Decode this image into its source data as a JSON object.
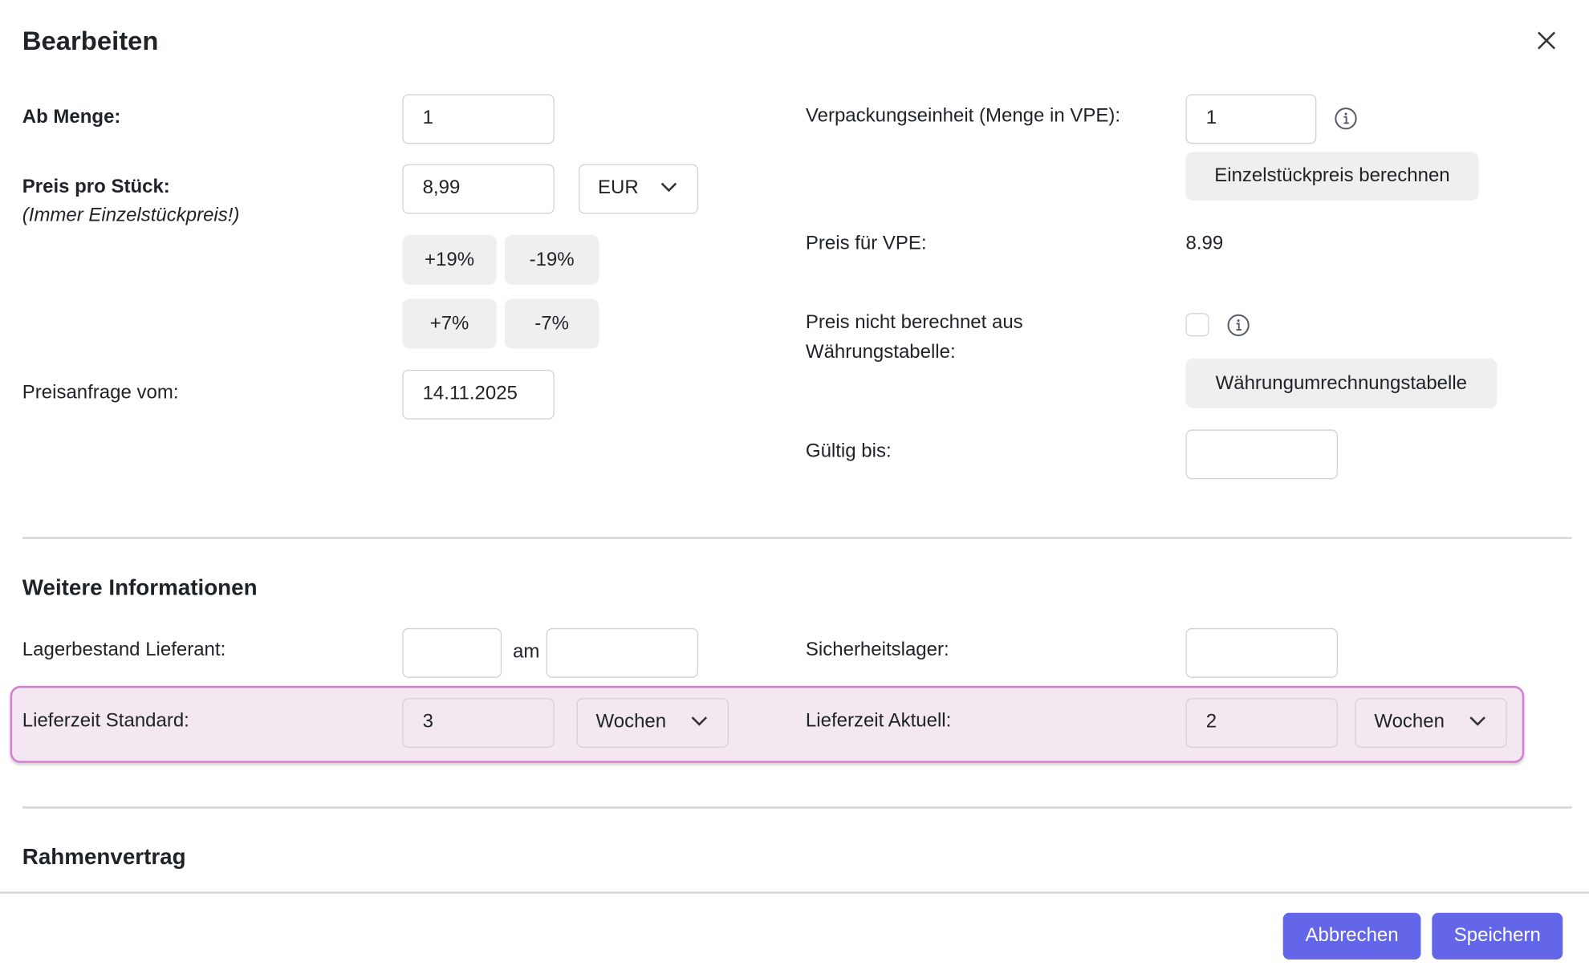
{
  "dialog": {
    "title": "Bearbeiten",
    "close_icon": "close-icon"
  },
  "pricing": {
    "ab_menge": {
      "label": "Ab Menge:",
      "value": "1"
    },
    "preis_pro_stueck": {
      "label": "Preis pro Stück:",
      "hint": "(Immer Einzelstückpreis!)",
      "value": "8,99",
      "currency": "EUR"
    },
    "percent_buttons": [
      "+19%",
      "-19%",
      "+7%",
      "-7%"
    ],
    "preisanfrage": {
      "label": "Preisanfrage vom:",
      "value": "14.11.2025"
    },
    "vpe": {
      "label": "Verpackungseinheit (Menge in VPE):",
      "value": "1",
      "button": "Einzelstückpreis berechnen"
    },
    "preis_vpe": {
      "label": "Preis für VPE:",
      "value": "8.99"
    },
    "nicht_berechnet": {
      "label_line1": "Preis nicht berechnet aus",
      "label_line2": "Währungstabelle:",
      "checked": false,
      "button": "Währungumrechnungstabelle"
    },
    "gueltig_bis": {
      "label": "Gültig bis:",
      "value": ""
    }
  },
  "weitere": {
    "title": "Weitere Informationen",
    "lagerbestand": {
      "label": "Lagerbestand Lieferant:",
      "value": "",
      "am_label": "am",
      "am_value": ""
    },
    "sicherheitslager": {
      "label": "Sicherheitslager:",
      "value": ""
    },
    "lieferzeit_standard": {
      "label": "Lieferzeit Standard:",
      "value": "3",
      "unit": "Wochen"
    },
    "lieferzeit_aktuell": {
      "label": "Lieferzeit Aktuell:",
      "value": "2",
      "unit": "Wochen"
    }
  },
  "rahmenvertrag": {
    "title": "Rahmenvertrag"
  },
  "footer": {
    "cancel": "Abbrechen",
    "save": "Speichern"
  },
  "colors": {
    "primary": "#6366e9",
    "highlight_bg": "#f3e8f1",
    "highlight_border": "#d67fd0"
  }
}
